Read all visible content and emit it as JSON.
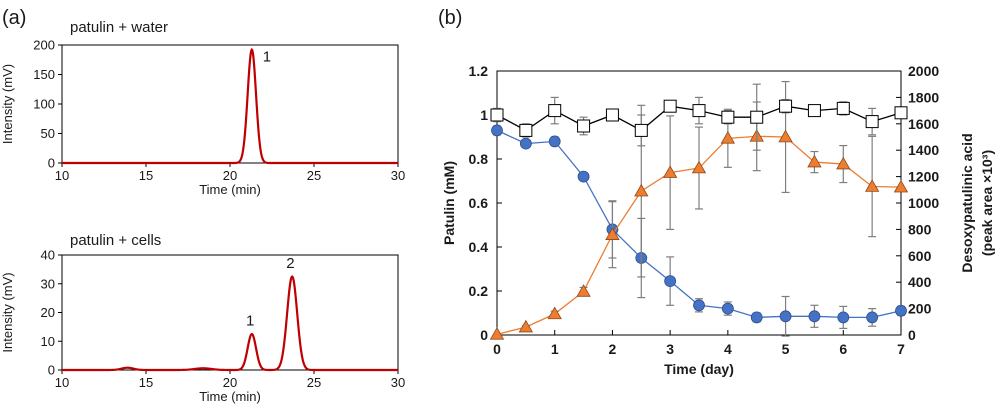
{
  "panel_labels": {
    "a": "(a)",
    "b": "(b)"
  },
  "chart_data": [
    {
      "id": "chrom-water",
      "type": "line",
      "title": "patulin + water",
      "xlabel": "Time (min)",
      "ylabel": "Intensity (mV)",
      "xlim": [
        10,
        30
      ],
      "ylim": [
        0,
        200
      ],
      "x_ticks": [
        10,
        15,
        20,
        25,
        30
      ],
      "y_ticks": [
        0,
        50,
        100,
        150,
        200
      ],
      "grid": false,
      "line_color": "#c00000",
      "peaks": [
        {
          "label": "1",
          "time": 21.3,
          "height": 192,
          "width": 0.25
        }
      ],
      "annotations": [
        {
          "text": "1",
          "x": 22.2,
          "y": 172
        }
      ]
    },
    {
      "id": "chrom-cells",
      "type": "line",
      "title": "patulin + cells",
      "xlabel": "Time (min)",
      "ylabel": "Intensity (mV)",
      "xlim": [
        10,
        30
      ],
      "ylim": [
        0,
        40
      ],
      "x_ticks": [
        10,
        15,
        20,
        25,
        30
      ],
      "y_ticks": [
        0,
        10,
        20,
        30,
        40
      ],
      "grid": false,
      "line_color": "#c00000",
      "peaks": [
        {
          "label": "1",
          "time": 21.3,
          "height": 12.5,
          "width": 0.25
        },
        {
          "label": "2",
          "time": 23.7,
          "height": 32.5,
          "width": 0.3
        },
        {
          "label": "",
          "time": 13.9,
          "height": 0.8,
          "width": 0.35
        },
        {
          "label": "",
          "time": 18.4,
          "height": 0.6,
          "width": 0.5
        }
      ],
      "annotations": [
        {
          "text": "1",
          "x": 21.2,
          "y": 15.5
        },
        {
          "text": "2",
          "x": 23.6,
          "y": 35.5
        }
      ]
    },
    {
      "id": "time-course",
      "type": "line",
      "xlabel": "Time (day)",
      "ylabel": "Patulin (mM)",
      "ylabel_right_lines": [
        "Desoxypatulinic acid",
        "(peak area ×10³)"
      ],
      "xlim": [
        0,
        7
      ],
      "ylim": [
        0,
        1.2
      ],
      "ylim_right": [
        0,
        2000
      ],
      "x_ticks": [
        0,
        1,
        2,
        3,
        4,
        5,
        6,
        7
      ],
      "y_ticks": [
        "0",
        "0.2",
        "0.4",
        "0.6",
        "0.8",
        "1",
        "1.2"
      ],
      "y_ticks_right": [
        0,
        200,
        400,
        600,
        800,
        1000,
        1200,
        1400,
        1600,
        1800,
        2000
      ],
      "grid": false,
      "series": [
        {
          "marker": "circle",
          "axis": "left",
          "color": "#4472c4",
          "x": [
            0,
            0.5,
            1,
            1.5,
            2,
            2.5,
            3,
            3.5,
            4,
            4.5,
            5,
            5.5,
            6,
            6.5,
            7
          ],
          "y": [
            0.93,
            0.87,
            0.88,
            0.72,
            0.48,
            0.35,
            0.245,
            0.135,
            0.12,
            0.08,
            0.085,
            0.085,
            0.08,
            0.08,
            0.11
          ],
          "err": [
            0.02,
            0.01,
            0.02,
            0.01,
            0.13,
            0.18,
            0.11,
            0.03,
            0.03,
            0.02,
            0.09,
            0.05,
            0.05,
            0.04,
            0.02
          ]
        },
        {
          "marker": "triangle",
          "axis": "right",
          "color": "#ed7d31",
          "x": [
            0,
            0.5,
            1,
            1.5,
            2,
            2.5,
            3,
            3.5,
            4,
            4.5,
            5,
            5.5,
            6,
            6.5,
            7
          ],
          "y": [
            5,
            60,
            160,
            330,
            760,
            1090,
            1230,
            1265,
            1490,
            1505,
            1500,
            1310,
            1295,
            1125,
            1120
          ],
          "err": [
            0,
            10,
            20,
            30,
            250,
            650,
            430,
            310,
            220,
            260,
            420,
            80,
            140,
            380,
            0
          ]
        },
        {
          "marker": "square",
          "axis": "left",
          "color": "#ffffff",
          "line_color": "#000000",
          "x": [
            0,
            0.5,
            1,
            1.5,
            2,
            2.5,
            3,
            3.5,
            4,
            4.5,
            5,
            5.5,
            6,
            6.5,
            7
          ],
          "y": [
            1.0,
            0.93,
            1.02,
            0.95,
            1.0,
            0.93,
            1.04,
            1.02,
            0.99,
            0.99,
            1.04,
            1.02,
            1.03,
            0.97,
            1.01
          ],
          "err": [
            0.03,
            0.03,
            0.06,
            0.04,
            0.0,
            0.07,
            0.02,
            0.06,
            0.03,
            0.15,
            0.03,
            0.02,
            0.03,
            0.06,
            0.01
          ]
        }
      ]
    }
  ]
}
